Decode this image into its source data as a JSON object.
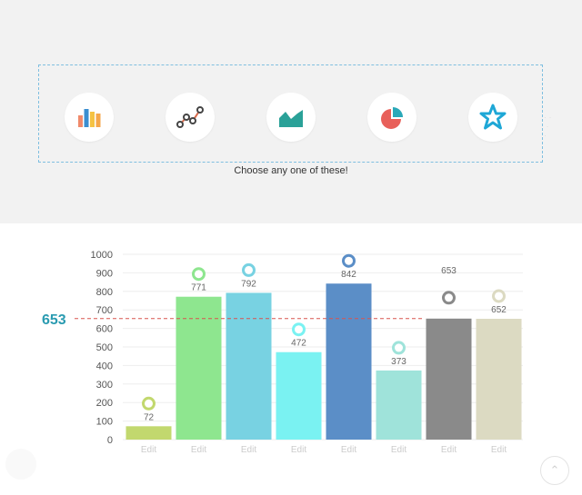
{
  "picker": {
    "caption": "Choose any one of these!",
    "options": [
      {
        "icon": "bar-chart-icon"
      },
      {
        "icon": "line-chart-icon"
      },
      {
        "icon": "area-chart-icon"
      },
      {
        "icon": "pie-chart-icon"
      },
      {
        "icon": "star-icon"
      }
    ]
  },
  "colors": {
    "accent": "#2a9bb1",
    "threshold_line": "#d9534f",
    "picker_border": "#7fbfe0"
  },
  "chart_data": {
    "type": "bar",
    "categories": [
      "Edit",
      "Edit",
      "Edit",
      "Edit",
      "Edit",
      "Edit",
      "Edit",
      "Edit"
    ],
    "values": [
      72,
      771,
      792,
      472,
      842,
      373,
      653,
      652
    ],
    "value_labels": [
      "72",
      "771",
      "792",
      "472",
      "842",
      "373",
      "653",
      "652"
    ],
    "bar_colors": [
      "#c2d86e",
      "#8ee68f",
      "#78d2e2",
      "#7af2f2",
      "#5b8ec7",
      "#9fe3da",
      "#8a8a8a",
      "#dcdac2"
    ],
    "marker_colors": [
      "#c2d86e",
      "#8ee68f",
      "#78d2e2",
      "#7af2f2",
      "#5b8ec7",
      "#9fe3da",
      "#8a8a8a",
      "#dcdac2"
    ],
    "ylim": [
      0,
      1000
    ],
    "yticks": [
      0,
      100,
      200,
      300,
      400,
      500,
      600,
      700,
      800,
      900,
      1000
    ],
    "threshold": {
      "value": 653,
      "label": "653"
    },
    "grid": true,
    "title": "",
    "xlabel": "",
    "ylabel": ""
  }
}
